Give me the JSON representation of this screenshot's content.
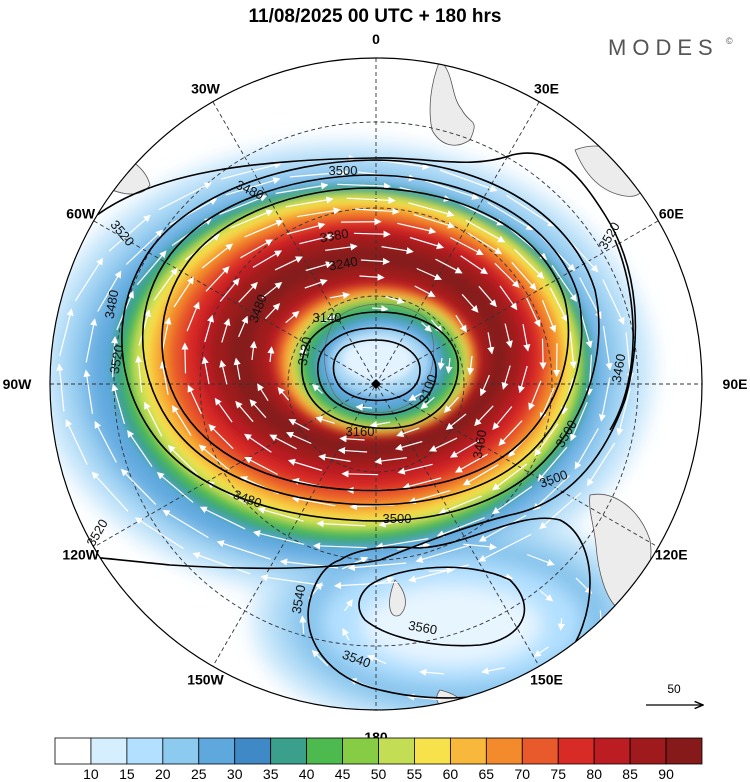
{
  "title": "11/08/2025  00 UTC  + 180 hrs",
  "logo": {
    "text": "MODES",
    "mark": "©"
  },
  "meridian_labels": [
    {
      "text": "0",
      "lon": 0
    },
    {
      "text": "30E",
      "lon": 30
    },
    {
      "text": "60E",
      "lon": 60
    },
    {
      "text": "90E",
      "lon": 90
    },
    {
      "text": "120E",
      "lon": 120
    },
    {
      "text": "150E",
      "lon": 150
    },
    {
      "text": "180",
      "lon": 180
    },
    {
      "text": "150W",
      "lon": -150
    },
    {
      "text": "120W",
      "lon": -120
    },
    {
      "text": "90W",
      "lon": -90
    },
    {
      "text": "60W",
      "lon": -60
    },
    {
      "text": "30W",
      "lon": -30
    }
  ],
  "contour_labels": [
    "3500",
    "3480",
    "3520",
    "3380",
    "3240",
    "3140",
    "3120",
    "3100",
    "3160",
    "3460",
    "3500",
    "3480",
    "3520",
    "3520",
    "3500",
    "3540",
    "3560",
    "3540",
    "3520",
    "3460",
    "3480",
    "3500",
    "3480"
  ],
  "colorbar": {
    "labels": [
      "10",
      "15",
      "20",
      "25",
      "30",
      "35",
      "40",
      "45",
      "50",
      "55",
      "60",
      "65",
      "70",
      "75",
      "80",
      "85",
      "90"
    ],
    "colors": [
      "#ffffff",
      "#d6efff",
      "#b3e0ff",
      "#8ccaf0",
      "#5fa8de",
      "#3f89c7",
      "#3aa08c",
      "#4dba50",
      "#86cc45",
      "#c3de55",
      "#f7e24c",
      "#f7b83b",
      "#f38a2c",
      "#e8592b",
      "#d92b26",
      "#bc1d22",
      "#9e1a1d",
      "#861a1a"
    ]
  },
  "reference_vector": {
    "label": "50"
  }
}
